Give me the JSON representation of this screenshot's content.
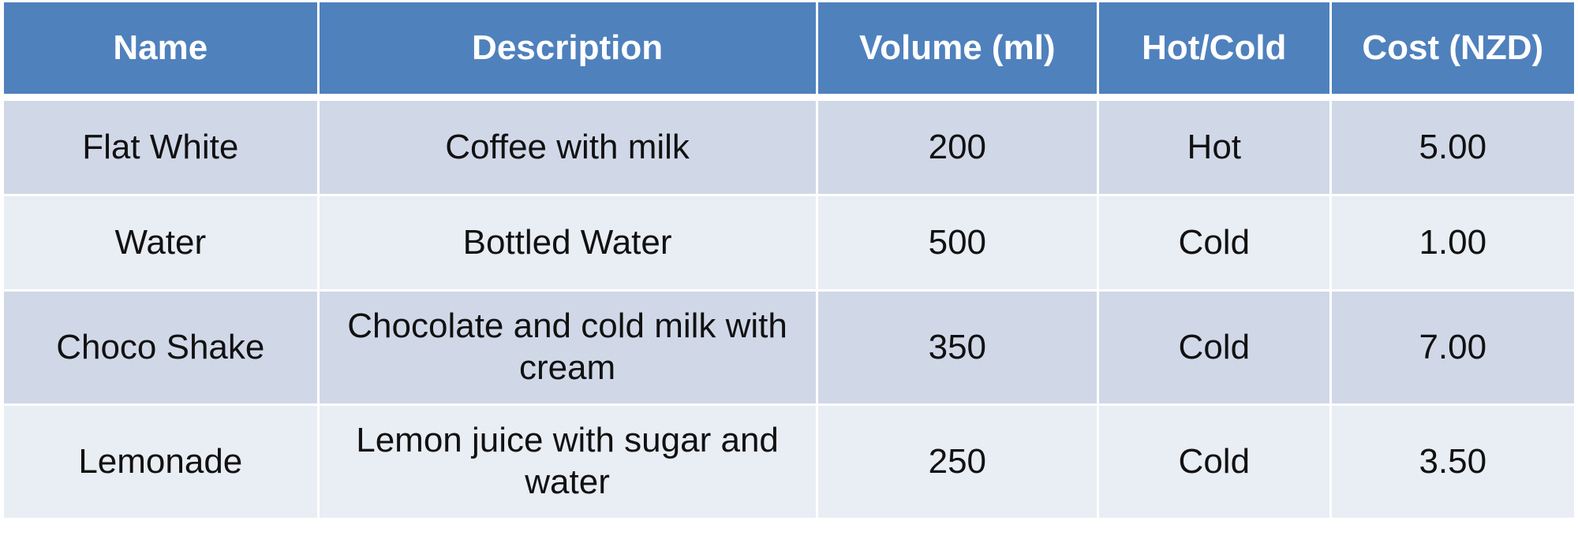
{
  "table": {
    "headers": [
      "Name",
      "Description",
      "Volume (ml)",
      "Hot/Cold",
      "Cost (NZD)"
    ],
    "rows": [
      [
        "Flat White",
        "Coffee with milk",
        "200",
        "Hot",
        "5.00"
      ],
      [
        "Water",
        "Bottled Water",
        "500",
        "Cold",
        "1.00"
      ],
      [
        "Choco Shake",
        "Chocolate and cold milk with cream",
        "350",
        "Cold",
        "7.00"
      ],
      [
        "Lemonade",
        "Lemon juice with sugar and water",
        "250",
        "Cold",
        "3.50"
      ]
    ]
  },
  "colors": {
    "header_bg": "#4f81bd",
    "header_text": "#ffffff",
    "row_odd_bg": "#d0d8e8",
    "row_even_bg": "#e9edf4",
    "grid": "#ffffff"
  }
}
